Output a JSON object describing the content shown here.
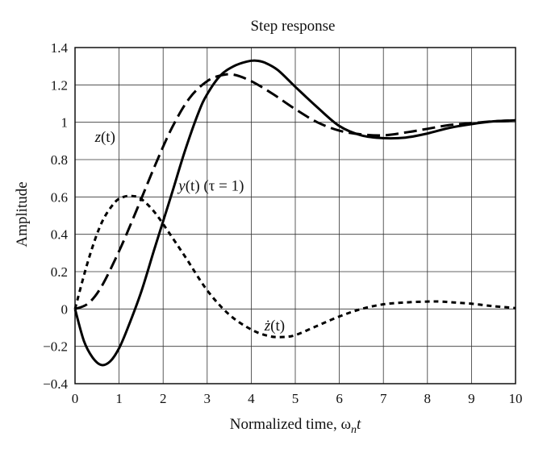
{
  "chart_data": {
    "type": "line",
    "title": "Step response",
    "xlabel": "Normalized time, ω",
    "xlabel_sub": "n",
    "xlabel_suffix": "t",
    "ylabel": "Amplitude",
    "xlim": [
      0,
      10
    ],
    "ylim": [
      -0.4,
      1.4
    ],
    "xticks": [
      0,
      1,
      2,
      3,
      4,
      5,
      6,
      7,
      8,
      9,
      10
    ],
    "yticks": [
      -0.4,
      -0.2,
      0,
      0.2,
      0.4,
      0.6,
      0.8,
      1,
      1.2,
      1.4
    ],
    "xtick_labels": [
      "0",
      "1",
      "2",
      "3",
      "4",
      "5",
      "6",
      "7",
      "8",
      "9",
      "10"
    ],
    "ytick_labels": [
      "−0.4",
      "−0.2",
      "0",
      "0.2",
      "0.4",
      "0.6",
      "0.8",
      "1",
      "1.2",
      "1.4"
    ],
    "grid": true,
    "series": [
      {
        "name": "y(t) (τ = 1)",
        "style": "solid",
        "x": [
          0,
          0.2,
          0.4,
          0.6,
          0.8,
          1.0,
          1.2,
          1.5,
          1.8,
          2.0,
          2.2,
          2.5,
          2.8,
          3.0,
          3.3,
          3.6,
          3.9,
          4.1,
          4.3,
          4.6,
          5.0,
          5.5,
          6.0,
          6.5,
          7.0,
          7.5,
          8.0,
          8.5,
          9.0,
          9.5,
          10.0
        ],
        "y": [
          0,
          -0.17,
          -0.26,
          -0.3,
          -0.28,
          -0.21,
          -0.1,
          0.09,
          0.32,
          0.47,
          0.62,
          0.85,
          1.05,
          1.15,
          1.25,
          1.3,
          1.325,
          1.33,
          1.32,
          1.28,
          1.19,
          1.08,
          0.98,
          0.93,
          0.915,
          0.918,
          0.94,
          0.97,
          0.99,
          1.005,
          1.01
        ]
      },
      {
        "name": "z(t)",
        "style": "dashed",
        "x": [
          0,
          0.3,
          0.6,
          1.0,
          1.4,
          1.8,
          2.2,
          2.6,
          3.0,
          3.3,
          3.6,
          4.0,
          4.5,
          5.0,
          5.5,
          6.0,
          6.5,
          7.0,
          7.5,
          8.0,
          8.5,
          9.0,
          9.5,
          10.0
        ],
        "y": [
          0,
          0.03,
          0.12,
          0.31,
          0.53,
          0.76,
          0.97,
          1.13,
          1.22,
          1.25,
          1.255,
          1.22,
          1.15,
          1.07,
          1.0,
          0.955,
          0.935,
          0.93,
          0.945,
          0.965,
          0.985,
          0.995,
          1.005,
          1.01
        ]
      },
      {
        "name": "ż(t)",
        "style": "dotted",
        "x": [
          0,
          0.3,
          0.6,
          0.9,
          1.1,
          1.3,
          1.5,
          1.8,
          2.1,
          2.5,
          3.0,
          3.5,
          4.0,
          4.4,
          4.7,
          5.0,
          5.5,
          6.0,
          6.5,
          7.0,
          7.5,
          8.0,
          8.3,
          8.6,
          9.0,
          9.5,
          10.0
        ],
        "y": [
          0,
          0.26,
          0.46,
          0.57,
          0.6,
          0.605,
          0.59,
          0.52,
          0.42,
          0.28,
          0.1,
          -0.03,
          -0.11,
          -0.145,
          -0.15,
          -0.14,
          -0.09,
          -0.04,
          0.0,
          0.025,
          0.035,
          0.04,
          0.04,
          0.035,
          0.028,
          0.015,
          0.005
        ]
      }
    ],
    "annotations": [
      {
        "text_main": "z",
        "text_rest": "(t)",
        "x": 0.45,
        "y": 0.92
      },
      {
        "text_main": "y",
        "text_rest": "(t) (τ = 1)",
        "x": 2.35,
        "y": 0.66
      },
      {
        "text_main": "ż",
        "text_rest": "(t)",
        "x": 4.3,
        "y": -0.09
      }
    ]
  }
}
